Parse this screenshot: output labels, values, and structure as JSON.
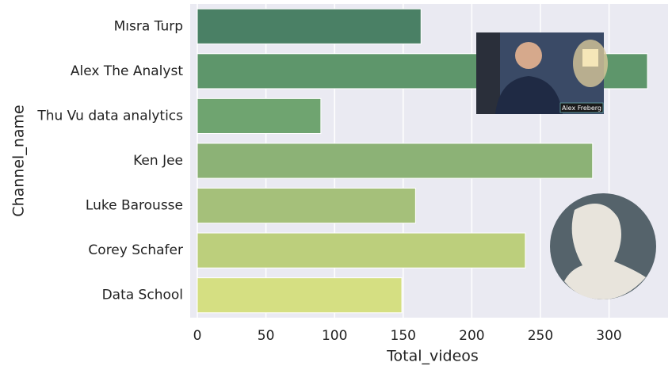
{
  "chart_data": {
    "type": "barh",
    "xlabel": "Total_videos",
    "ylabel": "Channel_name",
    "categories": [
      "Mısra Turp",
      "Alex The Analyst",
      "Thu Vu data analytics",
      "Ken Jee",
      "Luke Barousse",
      "Corey Schafer",
      "Data School"
    ],
    "values": [
      163,
      328,
      90,
      288,
      159,
      239,
      149
    ],
    "colors": [
      "#4a8065",
      "#5e966b",
      "#6fa470",
      "#8cb276",
      "#a5c07a",
      "#bccf7c",
      "#d5df82"
    ],
    "xlim": [
      0,
      343
    ],
    "xticks": [
      0,
      50,
      100,
      150,
      200,
      250,
      300
    ],
    "grid": true,
    "overlay_label": "Alex Freberg"
  }
}
